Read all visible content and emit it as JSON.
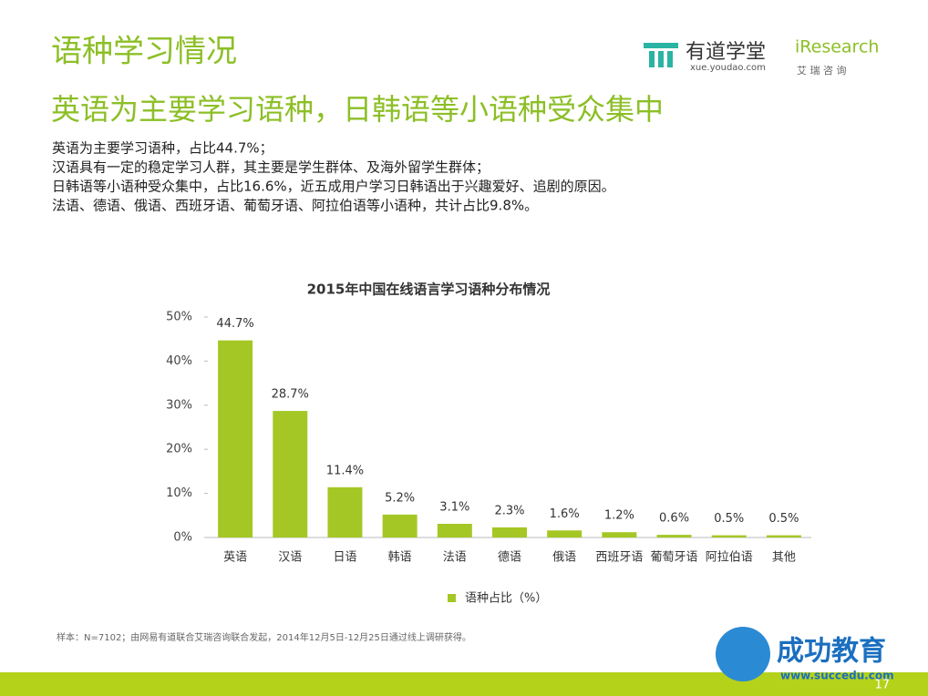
{
  "header": {
    "title": "语种学习情况",
    "headline": "英语为主要学习语种，日韩语等小语种受众集中"
  },
  "logos": {
    "youdao": "有道学堂",
    "youdao_url": "xue.youdao.com",
    "iresearch": "iResearch",
    "iresearch_cn": "艾 瑞 咨 询",
    "succedu": "成功教育",
    "succedu_url": "www.succedu.com"
  },
  "body": [
    "英语为主要学习语种，占比44.7%；",
    "汉语具有一定的稳定学习人群，其主要是学生群体、及海外留学生群体；",
    "日韩语等小语种受众集中，占比16.6%，近五成用户学习日韩语出于兴趣爱好、追剧的原因。",
    "法语、德语、俄语、西班牙语、葡萄牙语、阿拉伯语等小语种，共计占比9.8%。"
  ],
  "footnote": "样本：N=7102；由网易有道联合艾瑞咨询联合发起，2014年12月5日-12月25日通过线上调研获得。",
  "page_number": "17",
  "chart_data": {
    "type": "bar",
    "title": "2015年中国在线语言学习语种分布情况",
    "categories": [
      "英语",
      "汉语",
      "日语",
      "韩语",
      "法语",
      "德语",
      "俄语",
      "西班牙语",
      "葡萄牙语",
      "阿拉伯语",
      "其他"
    ],
    "series": [
      {
        "name": "语种占比（%）",
        "color": "#a5c725",
        "values": [
          44.7,
          28.7,
          11.4,
          5.2,
          3.1,
          2.3,
          1.6,
          1.2,
          0.6,
          0.5,
          0.5
        ],
        "value_labels": [
          "44.7%",
          "28.7%",
          "11.4%",
          "5.2%",
          "3.1%",
          "2.3%",
          "1.6%",
          "1.2%",
          "0.6%",
          "0.5%",
          "0.5%"
        ]
      }
    ],
    "ylim": [
      0,
      50
    ],
    "yticks": [
      {
        "value": 0,
        "label": "0%"
      },
      {
        "value": 10,
        "label": "10%"
      },
      {
        "value": 20,
        "label": "20%"
      },
      {
        "value": 30,
        "label": "30%"
      },
      {
        "value": 40,
        "label": "40%"
      },
      {
        "value": 50,
        "label": "50%"
      }
    ],
    "grid": false
  }
}
